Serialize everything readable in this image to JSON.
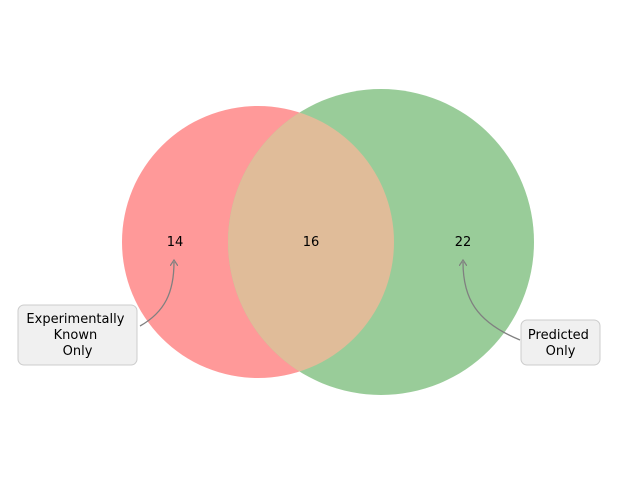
{
  "venn": {
    "sets": [
      {
        "name": "Experimentally Known",
        "color": "#ff9999"
      },
      {
        "name": "Predicted",
        "color": "#99cc99"
      }
    ],
    "intersection_color": "#e0bc99",
    "counts": {
      "left_only": "14",
      "both": "16",
      "right_only": "22"
    },
    "annotations": {
      "left": [
        "Experimentally",
        "Known",
        "Only"
      ],
      "right": [
        "Predicted",
        "Only"
      ]
    },
    "annotation_box_color": "#f0f0f0",
    "arrow_color": "#808080"
  }
}
